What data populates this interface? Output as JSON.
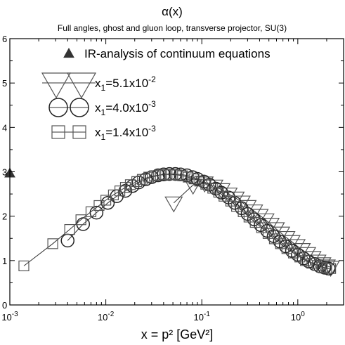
{
  "chart_data": {
    "type": "scatter",
    "title": "α(x)",
    "subtitle": "Full angles, ghost and gluon loop, transverse projector, SU(3)",
    "xlabel": "x = p² [GeV²]",
    "ylabel": "",
    "xscale": "log",
    "xlim": [
      0.001,
      3.0
    ],
    "ylim": [
      0,
      6
    ],
    "grid": false,
    "legend_position": "top-left",
    "x_ticks": [
      {
        "value": 0.001,
        "base": "10",
        "exp": "-3"
      },
      {
        "value": 0.01,
        "base": "10",
        "exp": "-2"
      },
      {
        "value": 0.1,
        "base": "10",
        "exp": "-1"
      },
      {
        "value": 1,
        "base": "10",
        "exp": "0"
      }
    ],
    "y_ticks": [
      "0",
      "1",
      "2",
      "3",
      "4",
      "5",
      "6"
    ],
    "legend": [
      {
        "marker": "filled-triangle",
        "text": "IR-analysis of continuum equations"
      },
      {
        "marker": "down-triangle",
        "base": "x",
        "sub": "1",
        "mid": "=5.1x10",
        "sup": "-2"
      },
      {
        "marker": "circle",
        "base": "x",
        "sub": "1",
        "mid": "=4.0x10",
        "sup": "-3"
      },
      {
        "marker": "square",
        "base": "x",
        "sub": "1",
        "mid": "=1.4x10",
        "sup": "-3"
      }
    ],
    "series": [
      {
        "marker": "filled-triangle",
        "x": [
          0.001
        ],
        "y": [
          2.97
        ]
      },
      {
        "marker": "down-triangle",
        "x": [
          0.051,
          0.081,
          0.107,
          0.135,
          0.16,
          0.19,
          0.225,
          0.26,
          0.3,
          0.35,
          0.4,
          0.46,
          0.52,
          0.59,
          0.67,
          0.76,
          0.86,
          0.97,
          1.1,
          1.25,
          1.42,
          1.6,
          1.8,
          2.0,
          2.2
        ],
        "y": [
          2.3,
          2.7,
          2.75,
          2.68,
          2.6,
          2.5,
          2.41,
          2.32,
          2.22,
          2.12,
          2.02,
          1.92,
          1.82,
          1.72,
          1.62,
          1.52,
          1.43,
          1.34,
          1.25,
          1.16,
          1.07,
          0.99,
          0.93,
          0.88,
          0.85
        ]
      },
      {
        "marker": "circle",
        "x": [
          0.004,
          0.0058,
          0.008,
          0.0105,
          0.013,
          0.016,
          0.019,
          0.022,
          0.026,
          0.03,
          0.035,
          0.04,
          0.046,
          0.053,
          0.06,
          0.07,
          0.08,
          0.09,
          0.105,
          0.12,
          0.14,
          0.16,
          0.19,
          0.22,
          0.26,
          0.3,
          0.35,
          0.41,
          0.48,
          0.56,
          0.65,
          0.75,
          0.87,
          1.0,
          1.15,
          1.3,
          1.5,
          1.7,
          1.9,
          2.1
        ],
        "y": [
          1.45,
          1.82,
          2.08,
          2.3,
          2.45,
          2.57,
          2.68,
          2.76,
          2.83,
          2.88,
          2.92,
          2.94,
          2.95,
          2.95,
          2.94,
          2.92,
          2.88,
          2.84,
          2.78,
          2.71,
          2.62,
          2.53,
          2.42,
          2.3,
          2.18,
          2.05,
          1.93,
          1.8,
          1.67,
          1.55,
          1.43,
          1.32,
          1.22,
          1.13,
          1.05,
          0.98,
          0.92,
          0.87,
          0.84,
          0.82
        ]
      },
      {
        "marker": "square",
        "x": [
          0.0014,
          0.0028,
          0.0042,
          0.0055,
          0.007,
          0.0085,
          0.01,
          0.012,
          0.014,
          0.016,
          0.018,
          0.021,
          0.024,
          0.028,
          0.032,
          0.037,
          0.042,
          0.048,
          0.055,
          0.063,
          0.072,
          0.083,
          0.095,
          0.11,
          0.13,
          0.15,
          0.17,
          0.2,
          0.23,
          0.27,
          0.31,
          0.36,
          0.42,
          0.49,
          0.57,
          0.66,
          0.77,
          0.9,
          1.05,
          1.2,
          1.4,
          1.6,
          1.8,
          2.0,
          2.2
        ],
        "y": [
          0.88,
          1.38,
          1.7,
          1.92,
          2.1,
          2.24,
          2.36,
          2.48,
          2.57,
          2.65,
          2.71,
          2.78,
          2.83,
          2.88,
          2.91,
          2.93,
          2.94,
          2.94,
          2.93,
          2.91,
          2.88,
          2.84,
          2.79,
          2.72,
          2.63,
          2.54,
          2.45,
          2.34,
          2.22,
          2.1,
          1.98,
          1.86,
          1.74,
          1.61,
          1.49,
          1.38,
          1.27,
          1.17,
          1.08,
          1.0,
          0.94,
          0.89,
          0.85,
          0.83,
          0.82
        ]
      }
    ]
  }
}
